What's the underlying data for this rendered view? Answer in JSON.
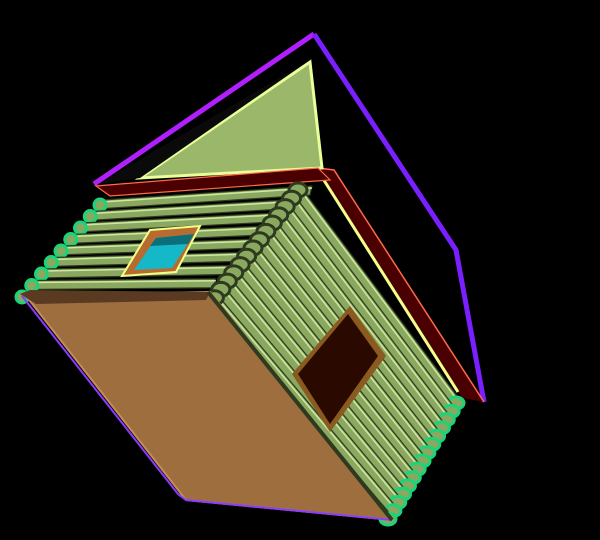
{
  "scene": {
    "subject": "log-cabin",
    "background_color": "#000000",
    "colors": {
      "roof_outline": "#7a1fff",
      "roof_outline_left": "#b21fff",
      "gable_fill": "#9bb86a",
      "gable_edge": "#e8ff9a",
      "log_fill": "#8aa860",
      "log_light": "#cfe7a0",
      "log_dark": "#2d3a1e",
      "log_end_ring": "#1bd47a",
      "roof_eave": "#4a0000",
      "roof_eave_edge": "#ff6a4a",
      "roof_eave_yellow": "#f2ff8a",
      "floor_fill": "#9f6e3f",
      "floor_edge": "#c58e58",
      "floor_outline": "#8a3cff",
      "window_frame": "#b86b2e",
      "window_glass": "#14b8c8",
      "door_fill": "#2a0a00",
      "door_frame": "#8a5a20"
    }
  }
}
